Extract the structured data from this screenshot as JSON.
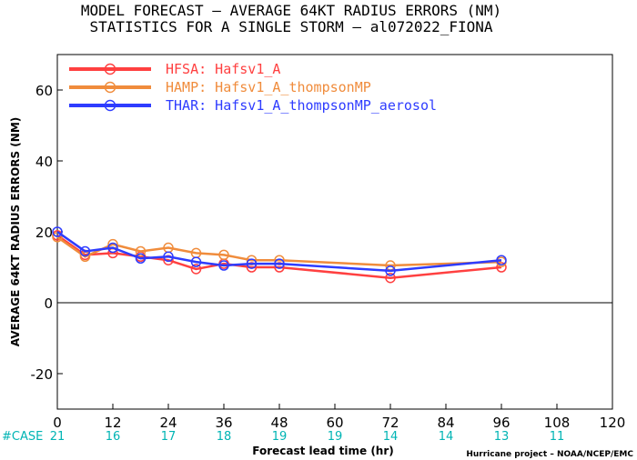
{
  "title_line1": "MODEL FORECAST – AVERAGE 64KT RADIUS ERRORS (NM)",
  "title_line2": "STATISTICS FOR A SINGLE STORM – al072022_FIONA",
  "case_label": "#CASE",
  "credit": "Hurricane project – NOAA/NCEP/EMC",
  "chart_data": {
    "type": "line",
    "xlabel": "Forecast lead time (hr)",
    "ylabel": "AVERAGE 64KT RADIUS ERRORS (NM)",
    "xlim": [
      0,
      120
    ],
    "ylim": [
      -30,
      70
    ],
    "xticks": [
      0,
      12,
      24,
      36,
      48,
      60,
      72,
      84,
      96,
      108,
      120
    ],
    "yticks": [
      -20,
      0,
      20,
      40,
      60
    ],
    "grid": false,
    "legend_position": "top-left",
    "zero_line": true,
    "cases": [
      {
        "x": 0,
        "n": "21"
      },
      {
        "x": 12,
        "n": "16"
      },
      {
        "x": 24,
        "n": "17"
      },
      {
        "x": 36,
        "n": "18"
      },
      {
        "x": 48,
        "n": "19"
      },
      {
        "x": 60,
        "n": "19"
      },
      {
        "x": 72,
        "n": "14"
      },
      {
        "x": 84,
        "n": "14"
      },
      {
        "x": 96,
        "n": "13"
      },
      {
        "x": 108,
        "n": "11"
      }
    ],
    "series": [
      {
        "name": "HFSA: Hafsv1_A",
        "color": "#ff4040",
        "x": [
          0,
          6,
          12,
          18,
          24,
          30,
          36,
          42,
          48,
          72,
          96
        ],
        "y": [
          19,
          13.5,
          14,
          13,
          12,
          9.5,
          11,
          10,
          10,
          7,
          10
        ]
      },
      {
        "name": "HAMP: Hafsv1_A_thompsonMP",
        "color": "#f08c3c",
        "x": [
          0,
          6,
          12,
          18,
          24,
          30,
          36,
          42,
          48,
          72,
          96
        ],
        "y": [
          18.5,
          13,
          16.5,
          14.5,
          15.5,
          14,
          13.5,
          12,
          12,
          10.5,
          11.5
        ]
      },
      {
        "name": "THAR: Hafsv1_A_thompsonMP_aerosol",
        "color": "#2e3cff",
        "x": [
          0,
          6,
          12,
          18,
          24,
          30,
          36,
          42,
          48,
          72,
          96
        ],
        "y": [
          20,
          14.5,
          15.5,
          12.5,
          13,
          11.5,
          10.5,
          11,
          11,
          9,
          12
        ]
      }
    ]
  }
}
